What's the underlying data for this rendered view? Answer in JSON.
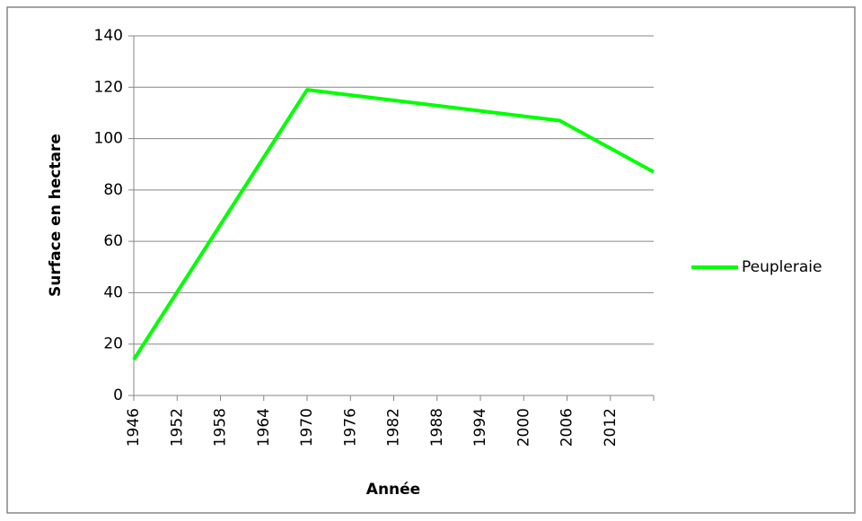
{
  "chart_data": {
    "type": "line",
    "x_label": "Année",
    "y_label": "Surface en hectare",
    "x": [
      1946,
      1970,
      2005,
      2018
    ],
    "series": [
      {
        "name": "Peupleraie",
        "color": "#00ff00",
        "values": [
          14,
          119,
          107,
          87
        ]
      }
    ],
    "xlim": [
      1946,
      2018
    ],
    "xticks": [
      1946,
      1952,
      1958,
      1964,
      1970,
      1976,
      1982,
      1988,
      1994,
      2000,
      2006,
      2012
    ],
    "ylim": [
      0,
      140
    ],
    "yticks": [
      0,
      20,
      40,
      60,
      80,
      100,
      120,
      140
    ],
    "grid": true,
    "legend": "right"
  }
}
